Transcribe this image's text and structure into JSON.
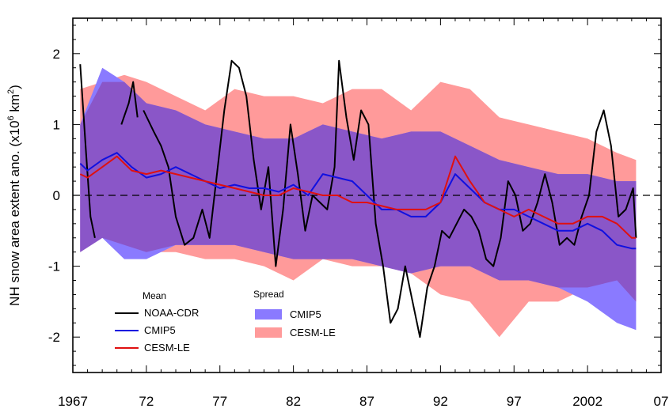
{
  "chart_data": {
    "type": "area",
    "title": "",
    "xlabel": "",
    "ylabel": "NH snow area extent ano. (x10",
    "ylabel_sup1": "6",
    "ylabel_mid": " km",
    "ylabel_sup2": "2",
    "ylabel_end": ")",
    "xlim": [
      1967,
      2007
    ],
    "ylim": [
      -2.5,
      2.5
    ],
    "x_ticks": [
      1967,
      1972,
      1977,
      1982,
      1987,
      1992,
      1997,
      2002,
      2007
    ],
    "x_tick_labels": [
      "1967",
      "72",
      "77",
      "82",
      "87",
      "92",
      "97",
      "2002",
      "07"
    ],
    "y_ticks": [
      -2,
      -1,
      0,
      1,
      2
    ],
    "y_tick_labels": [
      "-2",
      "-1",
      "0",
      "1",
      "2"
    ],
    "zero_line": true,
    "legend": {
      "mean_title": "Mean",
      "spread_title": "Spread",
      "placement": "bottom-left"
    },
    "colors": {
      "noaa": "#000000",
      "cmip5_line": "#1010e0",
      "cesm_line": "#e01010",
      "cmip5_fill": "#8a7aff",
      "cesm_fill": "#ff9a9a",
      "overlap_fill": "#8a56c8"
    },
    "spread": [
      {
        "name": "CESM-LE",
        "x": [
          1967.5,
          1969,
          1970.5,
          1972,
          1974,
          1976,
          1978,
          1980,
          1982,
          1984,
          1986,
          1988,
          1990,
          1992,
          1994,
          1996,
          1998,
          2000,
          2002,
          2004,
          2005.3
        ],
        "upper": [
          1.5,
          1.6,
          1.7,
          1.6,
          1.4,
          1.2,
          1.5,
          1.4,
          1.4,
          1.3,
          1.5,
          1.5,
          1.2,
          1.6,
          1.5,
          1.1,
          1.0,
          0.9,
          0.8,
          0.6,
          0.5
        ],
        "lower": [
          -0.8,
          -0.6,
          -0.7,
          -0.8,
          -0.8,
          -0.9,
          -0.9,
          -1.0,
          -1.2,
          -0.9,
          -1.0,
          -1.0,
          -1.1,
          -1.4,
          -1.5,
          -2.0,
          -1.5,
          -1.5,
          -1.3,
          -1.2,
          -1.5
        ]
      },
      {
        "name": "CMIP5",
        "x": [
          1967.5,
          1969,
          1970.5,
          1972,
          1974,
          1976,
          1978,
          1980,
          1982,
          1984,
          1986,
          1988,
          1990,
          1992,
          1994,
          1996,
          1998,
          2000,
          2002,
          2004,
          2005.3
        ],
        "upper": [
          1.0,
          1.8,
          1.6,
          1.3,
          1.2,
          1.0,
          0.9,
          0.8,
          0.8,
          1.0,
          0.9,
          0.8,
          0.9,
          0.9,
          0.7,
          0.5,
          0.4,
          0.3,
          0.3,
          0.2,
          0.2
        ],
        "lower": [
          -0.8,
          -0.6,
          -0.9,
          -0.9,
          -0.7,
          -0.7,
          -0.7,
          -0.8,
          -0.9,
          -0.9,
          -0.9,
          -1.0,
          -1.1,
          -1.0,
          -1.0,
          -1.2,
          -1.2,
          -1.3,
          -1.5,
          -1.8,
          -1.9
        ]
      }
    ],
    "series": [
      {
        "name": "NOAA-CDR",
        "segments": [
          {
            "x": [
              1967.5,
              1967.9,
              1968.2,
              1968.5
            ],
            "y": [
              1.85,
              0.6,
              -0.3,
              -0.6
            ]
          },
          {
            "x": [
              1970.3,
              1970.8,
              1971.1,
              1971.4
            ],
            "y": [
              1.0,
              1.3,
              1.6,
              1.1
            ]
          },
          {
            "x": [
              1971.8,
              1972.5,
              1973.0,
              1973.5,
              1974.0,
              1974.6,
              1975.2,
              1975.8,
              1976.3,
              1976.8,
              1977.3,
              1977.8,
              1978.3,
              1978.8,
              1979.3,
              1979.8,
              1980.3,
              1980.8,
              1981.3,
              1981.8,
              1982.3,
              1982.8,
              1983.3,
              1983.8,
              1984.3,
              1984.8,
              1985.1,
              1985.6,
              1986.1,
              1986.6,
              1987.1,
              1987.6,
              1988.1,
              1988.6,
              1989.1,
              1989.6,
              1990.1,
              1990.6,
              1991.1,
              1991.6,
              1992.1,
              1992.6,
              1993.1,
              1993.6,
              1994.1,
              1994.6,
              1995.1,
              1995.6,
              1996.1,
              1996.6,
              1997.1,
              1997.6,
              1998.1,
              1998.6,
              1999.1,
              1999.6,
              2000.1,
              2000.6,
              2001.1,
              2001.6,
              2002.1,
              2002.6,
              2003.1,
              2003.6,
              2004.1,
              2004.6,
              2005.1,
              2005.3
            ],
            "y": [
              1.2,
              0.9,
              0.7,
              0.4,
              -0.3,
              -0.7,
              -0.6,
              -0.2,
              -0.6,
              0.3,
              1.2,
              1.9,
              1.8,
              1.4,
              0.5,
              -0.2,
              0.4,
              -1.0,
              -0.2,
              1.0,
              0.3,
              -0.5,
              0.0,
              -0.1,
              -0.2,
              0.4,
              1.9,
              1.1,
              0.5,
              1.2,
              1.0,
              -0.4,
              -1.0,
              -1.8,
              -1.6,
              -1.0,
              -1.5,
              -2.0,
              -1.3,
              -1.0,
              -0.5,
              -0.6,
              -0.4,
              -0.2,
              -0.3,
              -0.5,
              -0.9,
              -1.0,
              -0.6,
              0.2,
              0.0,
              -0.5,
              -0.4,
              -0.1,
              0.3,
              -0.1,
              -0.7,
              -0.6,
              -0.7,
              -0.3,
              0.0,
              0.9,
              1.2,
              0.7,
              -0.3,
              -0.2,
              0.1,
              -0.6
            ]
          }
        ]
      },
      {
        "name": "CMIP5",
        "x": [
          1967.5,
          1968,
          1969,
          1970,
          1971,
          1972,
          1973,
          1974,
          1975,
          1976,
          1977,
          1978,
          1979,
          1980,
          1981,
          1982,
          1983,
          1984,
          1985,
          1986,
          1987,
          1988,
          1989,
          1990,
          1991,
          1992,
          1993,
          1994,
          1995,
          1996,
          1997,
          1998,
          1999,
          2000,
          2001,
          2002,
          2003,
          2004,
          2005,
          2005.3
        ],
        "y": [
          0.45,
          0.35,
          0.5,
          0.6,
          0.4,
          0.25,
          0.3,
          0.4,
          0.3,
          0.2,
          0.1,
          0.15,
          0.1,
          0.1,
          0.05,
          0.15,
          0.0,
          0.3,
          0.25,
          0.2,
          0.0,
          -0.2,
          -0.2,
          -0.3,
          -0.3,
          -0.1,
          0.3,
          0.1,
          -0.1,
          -0.2,
          -0.2,
          -0.3,
          -0.4,
          -0.5,
          -0.5,
          -0.4,
          -0.5,
          -0.7,
          -0.75,
          -0.75
        ]
      },
      {
        "name": "CESM-LE",
        "x": [
          1967.5,
          1968,
          1969,
          1970,
          1971,
          1972,
          1973,
          1974,
          1975,
          1976,
          1977,
          1978,
          1979,
          1980,
          1981,
          1982,
          1983,
          1984,
          1985,
          1986,
          1987,
          1988,
          1989,
          1990,
          1991,
          1992,
          1993,
          1994,
          1995,
          1996,
          1997,
          1998,
          1999,
          2000,
          2001,
          2002,
          2003,
          2004,
          2005,
          2005.3
        ],
        "y": [
          0.3,
          0.25,
          0.4,
          0.55,
          0.35,
          0.3,
          0.35,
          0.3,
          0.25,
          0.2,
          0.15,
          0.1,
          0.05,
          0.0,
          0.0,
          0.1,
          0.05,
          0.0,
          0.0,
          -0.1,
          -0.1,
          -0.15,
          -0.2,
          -0.2,
          -0.2,
          -0.1,
          0.55,
          0.2,
          -0.1,
          -0.2,
          -0.3,
          -0.2,
          -0.3,
          -0.4,
          -0.4,
          -0.3,
          -0.3,
          -0.4,
          -0.6,
          -0.6
        ]
      }
    ]
  }
}
